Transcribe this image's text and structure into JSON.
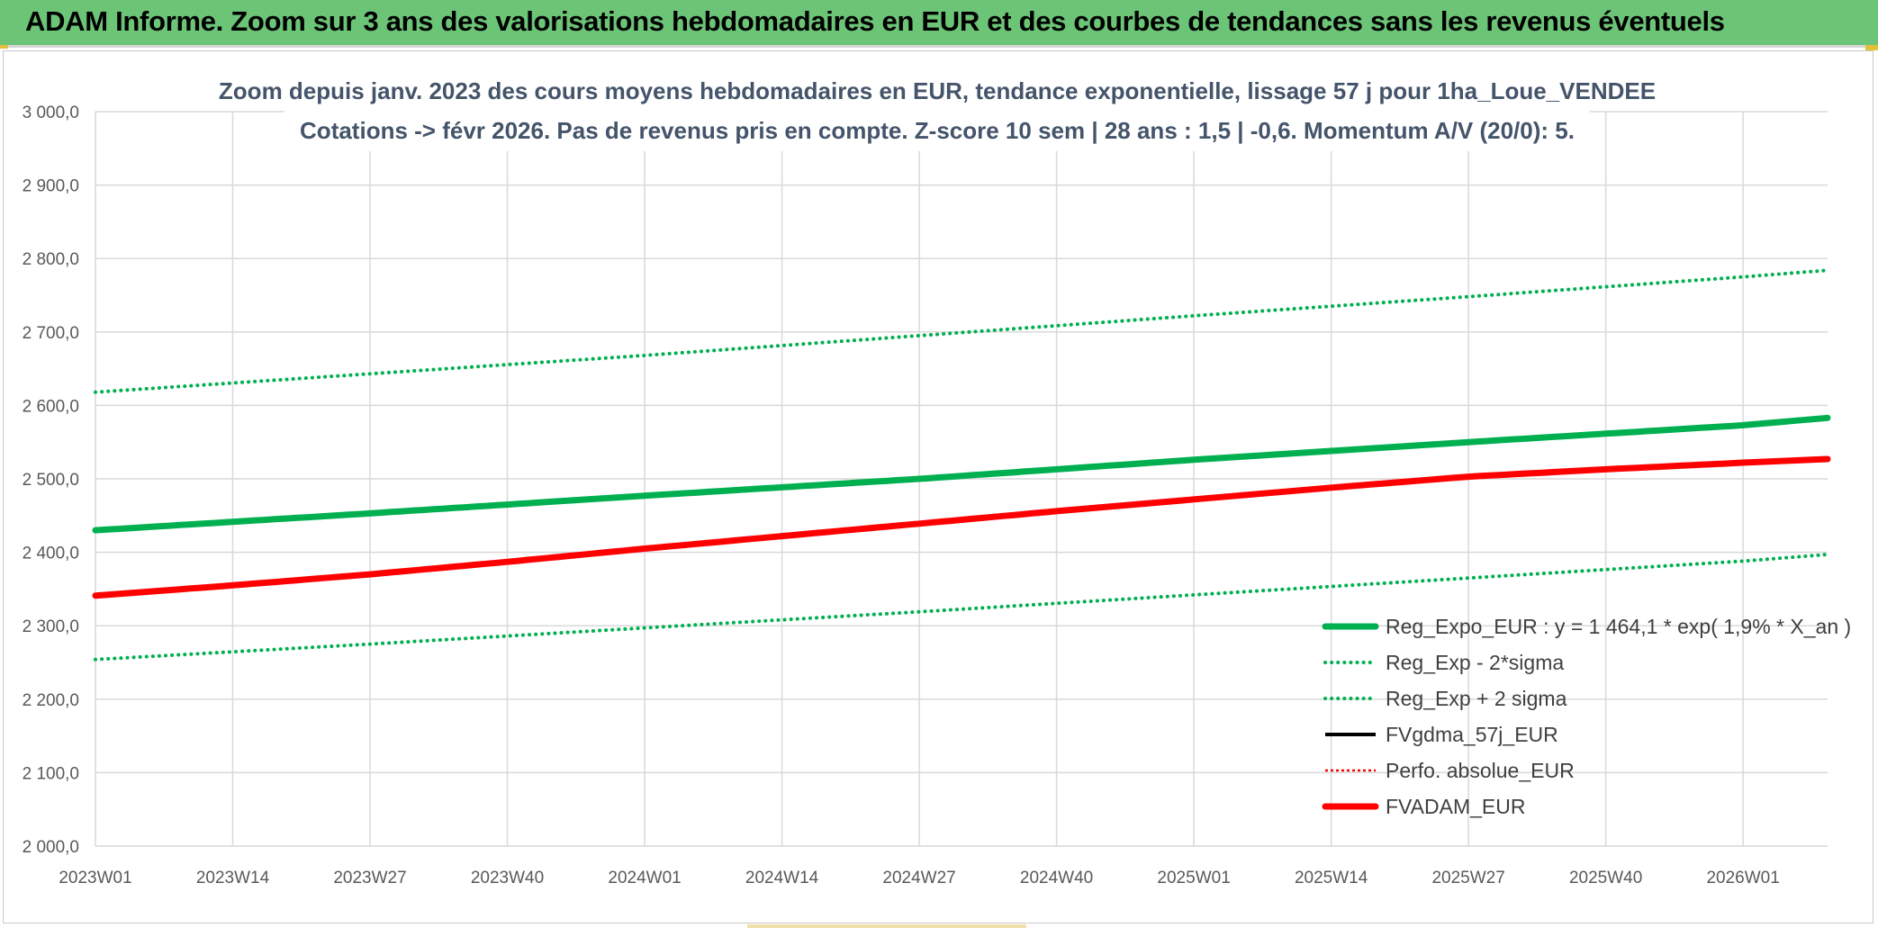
{
  "header": {
    "title": "ADAM Informe. Zoom sur 3 ans des valorisations hebdomadaires en EUR et des courbes de tendances sans les revenus éventuels"
  },
  "colors": {
    "banner": "#6cc477",
    "green": "#00b050",
    "red": "#ff0000",
    "black": "#000000",
    "title_text": "#44546a",
    "grid": "#d9d9d9"
  },
  "chart_data": {
    "type": "line",
    "title_line1": "Zoom depuis janv. 2023 des cours moyens hebdomadaires en EUR, tendance exponentielle, lissage 57 j pour 1ha_Loue_VENDEE",
    "title_line2": "Cotations -> févr 2026. Pas de revenus pris en compte. Z-score 10 sem | 28 ans : 1,5 | -0,6. Momentum A/V (20/0): 5.",
    "xlabel": "",
    "ylabel": "",
    "ylim": [
      2000,
      3000
    ],
    "yticks": [
      "2 000,0",
      "2 100,0",
      "2 200,0",
      "2 300,0",
      "2 400,0",
      "2 500,0",
      "2 600,0",
      "2 700,0",
      "2 800,0",
      "2 900,0",
      "3 000,0"
    ],
    "x_tick_labels": [
      "2023W01",
      "2023W14",
      "2023W27",
      "2023W40",
      "2024W01",
      "2024W14",
      "2024W27",
      "2024W40",
      "2025W01",
      "2025W14",
      "2025W27",
      "2025W40",
      "2026W01"
    ],
    "x_tick_weeks": [
      0,
      13,
      26,
      39,
      52,
      65,
      78,
      91,
      104,
      117,
      130,
      143,
      156
    ],
    "x_max_week": 164,
    "grid": true,
    "legend_position": "bottom-right",
    "series": [
      {
        "name": "Reg_Expo_EUR : y = 1 464,1 * exp( 1,9% *  X_an )",
        "style": "solid-thick",
        "color": "#00b050",
        "x": [
          0,
          26,
          52,
          78,
          104,
          130,
          156,
          164
        ],
        "values": [
          2430,
          2453,
          2477,
          2500,
          2526,
          2550,
          2573,
          2583
        ]
      },
      {
        "name": "Reg_Exp - 2*sigma",
        "style": "dotted",
        "color": "#00b050",
        "x": [
          0,
          26,
          52,
          78,
          104,
          130,
          156,
          164
        ],
        "values": [
          2254,
          2275,
          2297,
          2319,
          2342,
          2365,
          2388,
          2397
        ]
      },
      {
        "name": "Reg_Exp + 2 sigma",
        "style": "dotted",
        "color": "#00b050",
        "x": [
          0,
          26,
          52,
          78,
          104,
          130,
          156,
          164
        ],
        "values": [
          2618,
          2643,
          2668,
          2695,
          2722,
          2748,
          2775,
          2784
        ]
      },
      {
        "name": "FVgdma_57j_EUR",
        "style": "solid",
        "color": "#000000",
        "x": [],
        "values": []
      },
      {
        "name": "Perfo. absolue_EUR",
        "style": "dotted-thin",
        "color": "#ff0000",
        "x": [],
        "values": []
      },
      {
        "name": "FVADAM_EUR",
        "style": "solid-thick",
        "color": "#ff0000",
        "x": [
          0,
          13,
          26,
          39,
          52,
          65,
          78,
          91,
          104,
          117,
          130,
          143,
          156,
          164
        ],
        "values": [
          2341,
          2355,
          2370,
          2387,
          2405,
          2422,
          2439,
          2456,
          2472,
          2488,
          2503,
          2513,
          2522,
          2527
        ]
      }
    ]
  }
}
